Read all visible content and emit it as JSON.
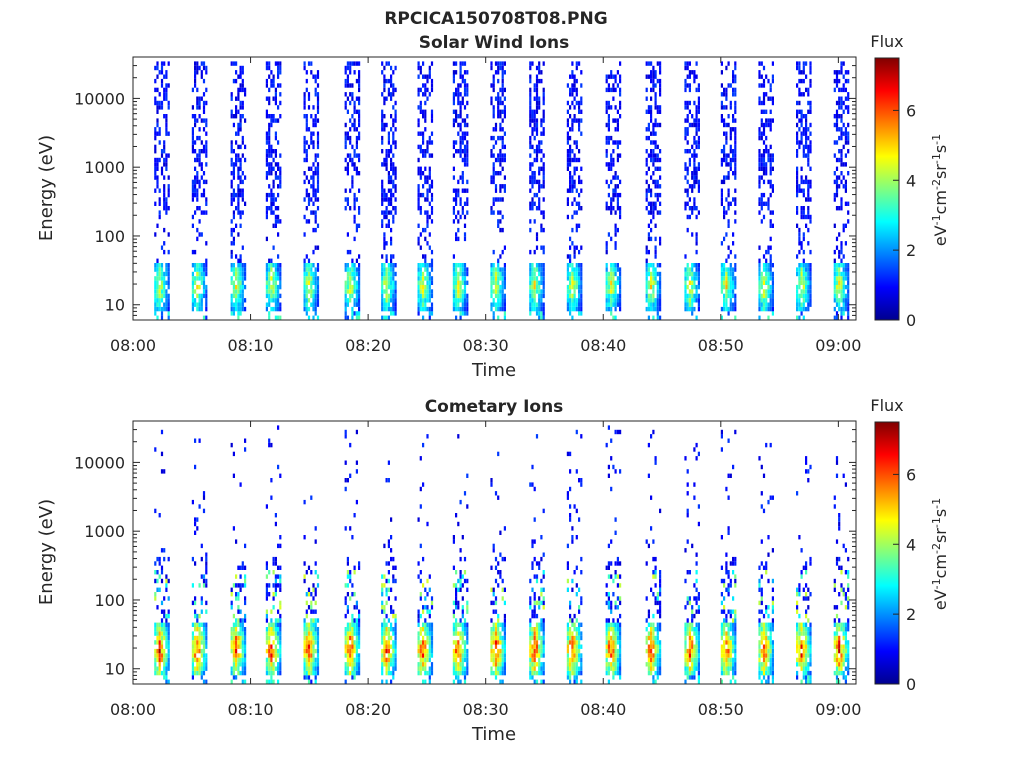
{
  "page_title": "RPCICA150708T08.PNG",
  "chart_data": [
    {
      "type": "heatmap",
      "title": "Solar Wind Ions",
      "xlabel": "Time",
      "ylabel": "Energy (eV)",
      "y_scale": "log",
      "xlim_minutes": [
        0,
        61.5
      ],
      "ylim": [
        6,
        40000
      ],
      "x_ticks": [
        "08:00",
        "08:10",
        "08:20",
        "08:30",
        "08:40",
        "08:50",
        "09:00"
      ],
      "y_ticks": [
        "10",
        "100",
        "1000",
        "10000"
      ],
      "colorbar": {
        "title": "Flux",
        "label": "eV-1cm-2sr-1s-1",
        "range": [
          0,
          7.5
        ],
        "ticks": [
          "0",
          "2",
          "4",
          "6"
        ],
        "colormap": "jet"
      },
      "scan_period_minutes": 3.15,
      "first_scan_minute": 2.4,
      "burst_centers_minutes": [
        2.4,
        5.6,
        8.9,
        11.9,
        15.1,
        18.6,
        21.7,
        24.8,
        27.8,
        31.0,
        34.3,
        37.5,
        40.8,
        44.2,
        47.5,
        50.6,
        53.8,
        57.0,
        60.2
      ],
      "low_energy_band": {
        "energy_range_eV": [
          8,
          40
        ],
        "peak_flux": 5.0
      },
      "sparse_high_energy_flux": 1.0,
      "grid": false
    },
    {
      "type": "heatmap",
      "title": "Cometary Ions",
      "xlabel": "Time",
      "ylabel": "Energy (eV)",
      "y_scale": "log",
      "xlim_minutes": [
        0,
        61.5
      ],
      "ylim": [
        6,
        40000
      ],
      "x_ticks": [
        "08:00",
        "08:10",
        "08:20",
        "08:30",
        "08:40",
        "08:50",
        "09:00"
      ],
      "y_ticks": [
        "10",
        "100",
        "1000",
        "10000"
      ],
      "colorbar": {
        "title": "Flux",
        "label": "eV-1cm-2sr-1s-1",
        "range": [
          0,
          7.5
        ],
        "ticks": [
          "0",
          "2",
          "4",
          "6"
        ],
        "colormap": "jet"
      },
      "burst_centers_minutes": [
        2.4,
        5.6,
        8.9,
        11.9,
        15.1,
        18.6,
        21.7,
        24.8,
        27.8,
        31.0,
        34.3,
        37.5,
        40.8,
        44.2,
        47.5,
        50.6,
        53.8,
        57.0,
        60.2
      ],
      "low_energy_band": {
        "energy_range_eV": [
          7,
          45
        ],
        "peak_flux": 7.0
      },
      "sparse_high_energy_flux": 1.0,
      "grid": false
    }
  ]
}
